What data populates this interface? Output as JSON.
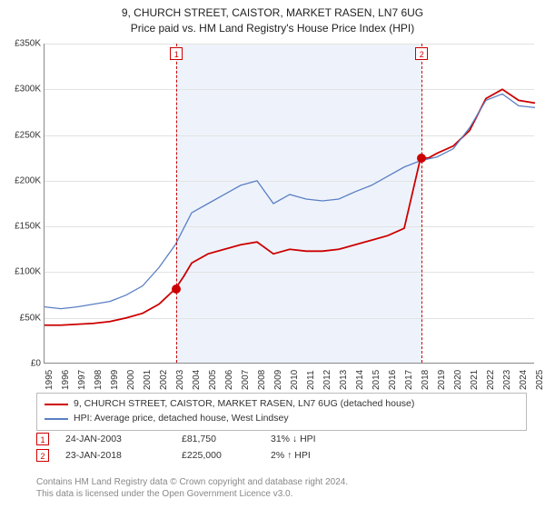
{
  "title_line1": "9, CHURCH STREET, CAISTOR, MARKET RASEN, LN7 6UG",
  "title_line2": "Price paid vs. HM Land Registry's House Price Index (HPI)",
  "chart": {
    "type": "line",
    "y_min": 0,
    "y_max": 350000,
    "y_tick_step": 50000,
    "y_tick_labels": [
      "£0",
      "£50K",
      "£100K",
      "£150K",
      "£200K",
      "£250K",
      "£300K",
      "£350K"
    ],
    "x_min": 1995,
    "x_max": 2025,
    "x_ticks": [
      1995,
      1996,
      1997,
      1998,
      1999,
      2000,
      2001,
      2002,
      2003,
      2004,
      2005,
      2006,
      2007,
      2008,
      2009,
      2010,
      2011,
      2012,
      2013,
      2014,
      2015,
      2016,
      2017,
      2018,
      2019,
      2020,
      2021,
      2022,
      2023,
      2024,
      2025
    ],
    "shade": {
      "x_start": 2003.07,
      "x_end": 2018.07,
      "color": "#eef3fb"
    },
    "series": [
      {
        "name": "property",
        "color": "#cc0000",
        "width": 1.8,
        "data": [
          [
            1995,
            42000
          ],
          [
            1996,
            42000
          ],
          [
            1997,
            43000
          ],
          [
            1998,
            44000
          ],
          [
            1999,
            46000
          ],
          [
            2000,
            50000
          ],
          [
            2001,
            55000
          ],
          [
            2002,
            65000
          ],
          [
            2003,
            81750
          ],
          [
            2003.5,
            95000
          ],
          [
            2004,
            110000
          ],
          [
            2005,
            120000
          ],
          [
            2006,
            125000
          ],
          [
            2007,
            130000
          ],
          [
            2008,
            133000
          ],
          [
            2009,
            120000
          ],
          [
            2010,
            125000
          ],
          [
            2011,
            123000
          ],
          [
            2012,
            123000
          ],
          [
            2013,
            125000
          ],
          [
            2014,
            130000
          ],
          [
            2015,
            135000
          ],
          [
            2016,
            140000
          ],
          [
            2017,
            148000
          ],
          [
            2018,
            225000
          ],
          [
            2018.5,
            225000
          ],
          [
            2019,
            230000
          ],
          [
            2020,
            238000
          ],
          [
            2021,
            255000
          ],
          [
            2022,
            290000
          ],
          [
            2023,
            300000
          ],
          [
            2024,
            288000
          ],
          [
            2025,
            285000
          ]
        ]
      },
      {
        "name": "hpi",
        "color": "#5a7fc4",
        "width": 1.3,
        "data": [
          [
            1995,
            62000
          ],
          [
            1996,
            60000
          ],
          [
            1997,
            62000
          ],
          [
            1998,
            65000
          ],
          [
            1999,
            68000
          ],
          [
            2000,
            75000
          ],
          [
            2001,
            85000
          ],
          [
            2002,
            105000
          ],
          [
            2003,
            130000
          ],
          [
            2004,
            165000
          ],
          [
            2005,
            175000
          ],
          [
            2006,
            185000
          ],
          [
            2007,
            195000
          ],
          [
            2008,
            200000
          ],
          [
            2009,
            175000
          ],
          [
            2010,
            185000
          ],
          [
            2011,
            180000
          ],
          [
            2012,
            178000
          ],
          [
            2013,
            180000
          ],
          [
            2014,
            188000
          ],
          [
            2015,
            195000
          ],
          [
            2016,
            205000
          ],
          [
            2017,
            215000
          ],
          [
            2018,
            222000
          ],
          [
            2019,
            226000
          ],
          [
            2020,
            235000
          ],
          [
            2021,
            258000
          ],
          [
            2022,
            288000
          ],
          [
            2023,
            295000
          ],
          [
            2024,
            282000
          ],
          [
            2025,
            280000
          ]
        ]
      }
    ],
    "markers": [
      {
        "series": "property",
        "x": 2003.07,
        "y": 81750,
        "label": "1"
      },
      {
        "series": "property",
        "x": 2018.07,
        "y": 225000,
        "label": "2"
      }
    ],
    "grid_color": "#e2e2e2",
    "axis_color": "#888",
    "background_color": "#ffffff"
  },
  "legend": {
    "items": [
      {
        "color": "#cc0000",
        "label": "9, CHURCH STREET, CAISTOR, MARKET RASEN, LN7 6UG (detached house)"
      },
      {
        "color": "#5a7fc4",
        "label": "HPI: Average price, detached house, West Lindsey"
      }
    ]
  },
  "events": [
    {
      "flag": "1",
      "date": "24-JAN-2003",
      "price": "£81,750",
      "hpi": "31% ↓ HPI"
    },
    {
      "flag": "2",
      "date": "23-JAN-2018",
      "price": "£225,000",
      "hpi": "2% ↑ HPI"
    }
  ],
  "copyright_line1": "Contains HM Land Registry data © Crown copyright and database right 2024.",
  "copyright_line2": "This data is licensed under the Open Government Licence v3.0."
}
